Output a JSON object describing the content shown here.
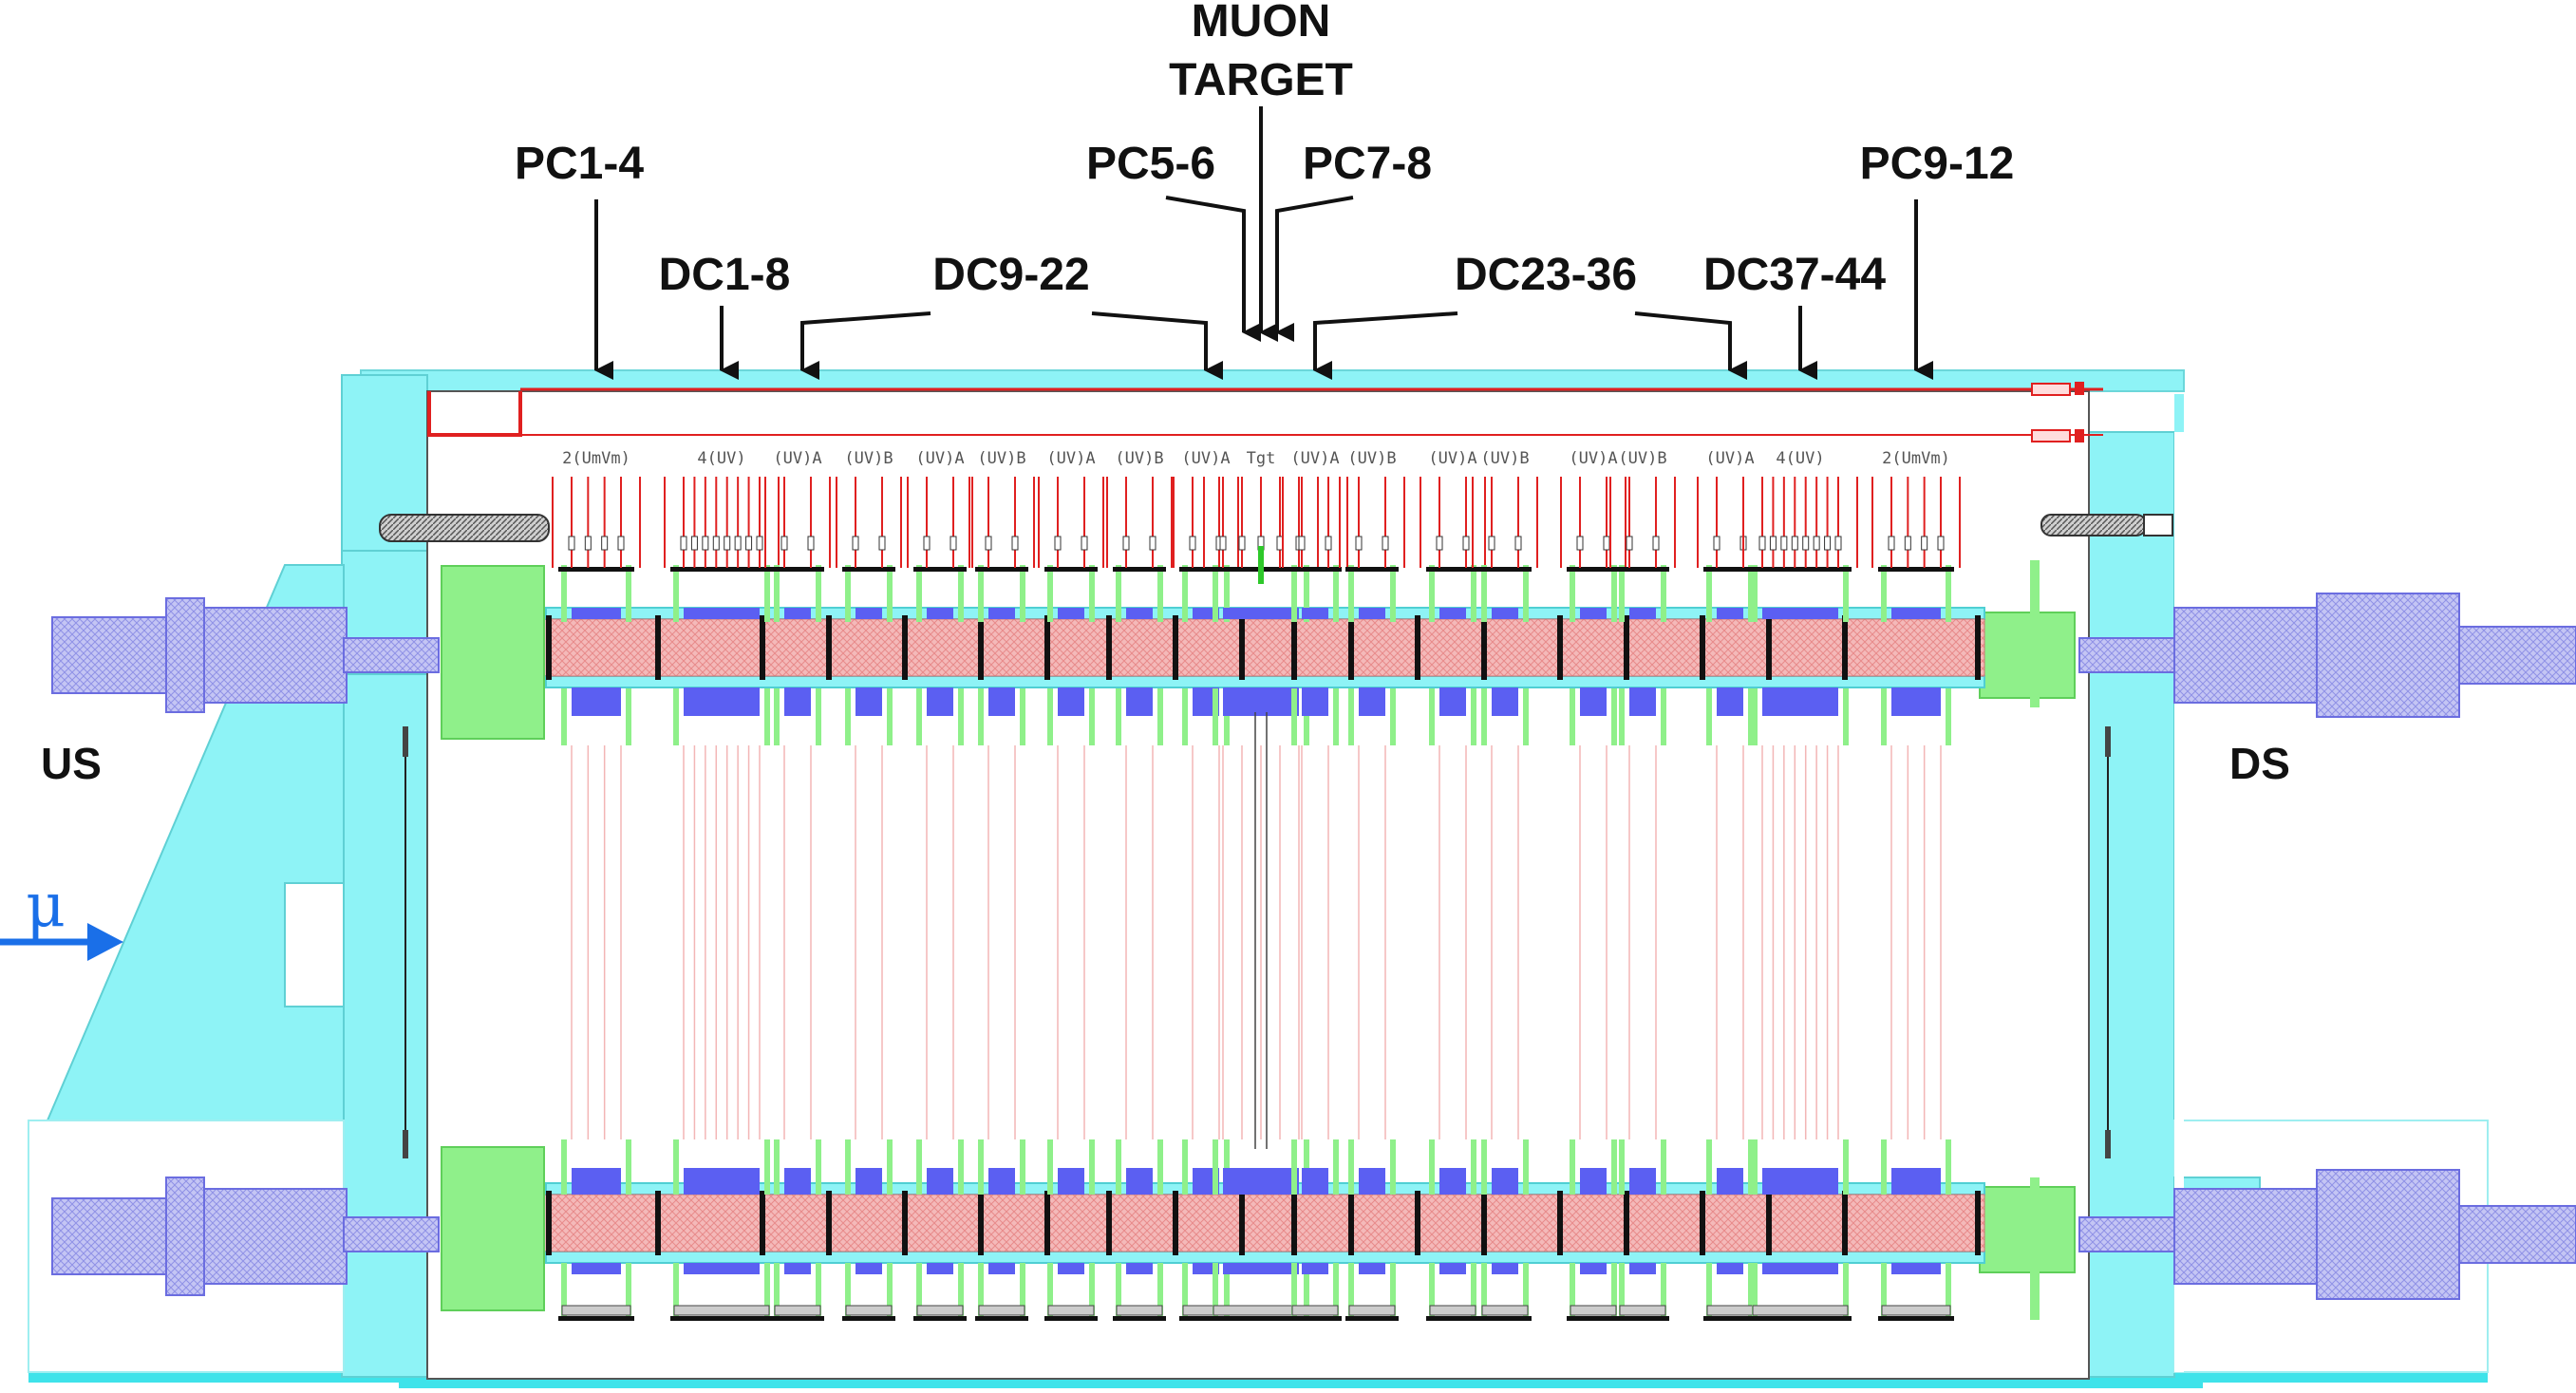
{
  "labels": {
    "target_line1": "MUON",
    "target_line2": "TARGET",
    "pc1_4": "PC1-4",
    "pc5_6": "PC5-6",
    "pc7_8": "PC7-8",
    "pc9_12": "PC9-12",
    "dc1_8": "DC1-8",
    "dc9_22": "DC9-22",
    "dc23_36": "DC23-36",
    "dc37_44": "DC37-44",
    "us": "US",
    "ds": "DS",
    "beam": "μ"
  },
  "modules": [
    {
      "label": "2(UmVm)",
      "wires": 4
    },
    {
      "label": "4(UV)",
      "wires": 8
    },
    {
      "label": "(UV)A",
      "wires": 2
    },
    {
      "label": "(UV)B",
      "wires": 2
    },
    {
      "label": "(UV)A",
      "wires": 2
    },
    {
      "label": "(UV)B",
      "wires": 2
    },
    {
      "label": "(UV)A",
      "wires": 2
    },
    {
      "label": "(UV)B",
      "wires": 2
    },
    {
      "label": "(UV)A",
      "wires": 2
    },
    {
      "label": "Tgt",
      "wires": 5
    },
    {
      "label": "(UV)A",
      "wires": 2
    },
    {
      "label": "(UV)B",
      "wires": 2
    },
    {
      "label": "(UV)A",
      "wires": 2
    },
    {
      "label": "(UV)B",
      "wires": 2
    },
    {
      "label": "(UV)A",
      "wires": 2
    },
    {
      "label": "(UV)B",
      "wires": 2
    },
    {
      "label": "(UV)A",
      "wires": 2
    },
    {
      "label": "4(UV)",
      "wires": 8
    },
    {
      "label": "2(UmVm)",
      "wires": 4
    }
  ],
  "colors": {
    "cyan": "#8ef3f6",
    "green": "#8ff08a",
    "blue": "#5b5ff2",
    "red": "#e02020",
    "pink": "#f3c4c4",
    "lavender": "#b8b9f0",
    "arrow": "#1a6fe8"
  }
}
